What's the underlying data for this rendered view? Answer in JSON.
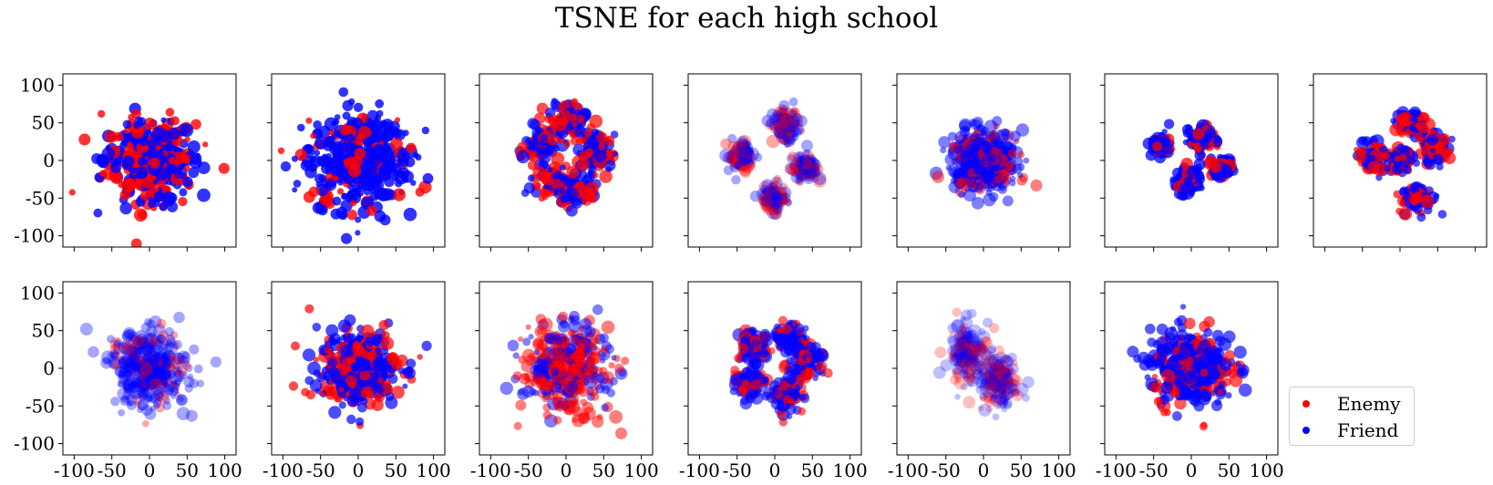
{
  "chart_data": {
    "type": "scatter",
    "title": "TSNE for each high school",
    "xlim": [
      -115,
      115
    ],
    "ylim": [
      -115,
      115
    ],
    "xticks": [
      -100,
      -50,
      0,
      50,
      100
    ],
    "yticks": [
      100,
      50,
      0,
      -50,
      -100
    ],
    "xtick_labels": [
      "-100",
      "-50",
      "0",
      "50",
      "100"
    ],
    "ytick_labels": [
      "100",
      "50",
      "0",
      "-50",
      "-100"
    ],
    "xlabel": "",
    "ylabel": "",
    "grid": false,
    "legend_placement": "bottom-right",
    "series": [
      {
        "name": "Enemy",
        "color": "#ff0000"
      },
      {
        "name": "Friend",
        "color": "#0000ff"
      }
    ],
    "panels": [
      {
        "row": 0,
        "col": 0,
        "clusters": [
          [
            0,
            0,
            55,
            50
          ]
        ],
        "enemy_frac": 0.45,
        "alpha": 0.8
      },
      {
        "row": 0,
        "col": 1,
        "clusters": [
          [
            0,
            0,
            62,
            60
          ]
        ],
        "enemy_frac": 0.15,
        "alpha": 0.8
      },
      {
        "row": 0,
        "col": 2,
        "clusters": [
          [
            -30,
            20,
            22,
            22
          ],
          [
            5,
            55,
            22,
            20
          ],
          [
            40,
            10,
            22,
            22
          ],
          [
            -15,
            -30,
            28,
            22
          ],
          [
            15,
            -40,
            22,
            18
          ]
        ],
        "enemy_frac": 0.45,
        "alpha": 0.7
      },
      {
        "row": 0,
        "col": 3,
        "clusters": [
          [
            -45,
            5,
            15,
            20
          ],
          [
            15,
            45,
            15,
            18
          ],
          [
            40,
            -10,
            15,
            15
          ],
          [
            0,
            -50,
            15,
            18
          ]
        ],
        "enemy_frac": 0.4,
        "alpha": 0.35
      },
      {
        "row": 0,
        "col": 4,
        "clusters": [
          [
            0,
            0,
            40,
            35
          ]
        ],
        "enemy_frac": 0.25,
        "alpha": 0.5
      },
      {
        "row": 0,
        "col": 5,
        "clusters": [
          [
            -40,
            20,
            10,
            12
          ],
          [
            15,
            30,
            15,
            15
          ],
          [
            40,
            -10,
            12,
            10
          ],
          [
            -5,
            -25,
            15,
            15
          ]
        ],
        "enemy_frac": 0.25,
        "alpha": 0.75
      },
      {
        "row": 0,
        "col": 6,
        "clusters": [
          [
            -35,
            5,
            18,
            20
          ],
          [
            15,
            50,
            18,
            15
          ],
          [
            45,
            15,
            18,
            18
          ],
          [
            0,
            0,
            15,
            15
          ],
          [
            25,
            -50,
            20,
            18
          ]
        ],
        "enemy_frac": 0.4,
        "alpha": 0.7
      },
      {
        "row": 1,
        "col": 0,
        "clusters": [
          [
            0,
            0,
            45,
            45
          ]
        ],
        "enemy_frac": 0.15,
        "alpha": 0.35
      },
      {
        "row": 1,
        "col": 1,
        "clusters": [
          [
            0,
            0,
            50,
            45
          ]
        ],
        "enemy_frac": 0.35,
        "alpha": 0.7
      },
      {
        "row": 1,
        "col": 2,
        "clusters": [
          [
            0,
            0,
            52,
            52
          ]
        ],
        "enemy_frac": 0.55,
        "alpha": 0.5
      },
      {
        "row": 1,
        "col": 3,
        "clusters": [
          [
            -30,
            30,
            20,
            20
          ],
          [
            20,
            40,
            20,
            18
          ],
          [
            -35,
            -20,
            20,
            20
          ],
          [
            40,
            5,
            20,
            20
          ],
          [
            15,
            -35,
            20,
            20
          ]
        ],
        "enemy_frac": 0.3,
        "alpha": 0.6
      },
      {
        "row": 1,
        "col": 4,
        "clusters": [
          [
            -20,
            20,
            25,
            35
          ],
          [
            20,
            -20,
            20,
            35
          ]
        ],
        "enemy_frac": 0.35,
        "alpha": 0.25
      },
      {
        "row": 1,
        "col": 5,
        "clusters": [
          [
            0,
            0,
            48,
            45
          ]
        ],
        "enemy_frac": 0.3,
        "alpha": 0.65
      }
    ]
  }
}
